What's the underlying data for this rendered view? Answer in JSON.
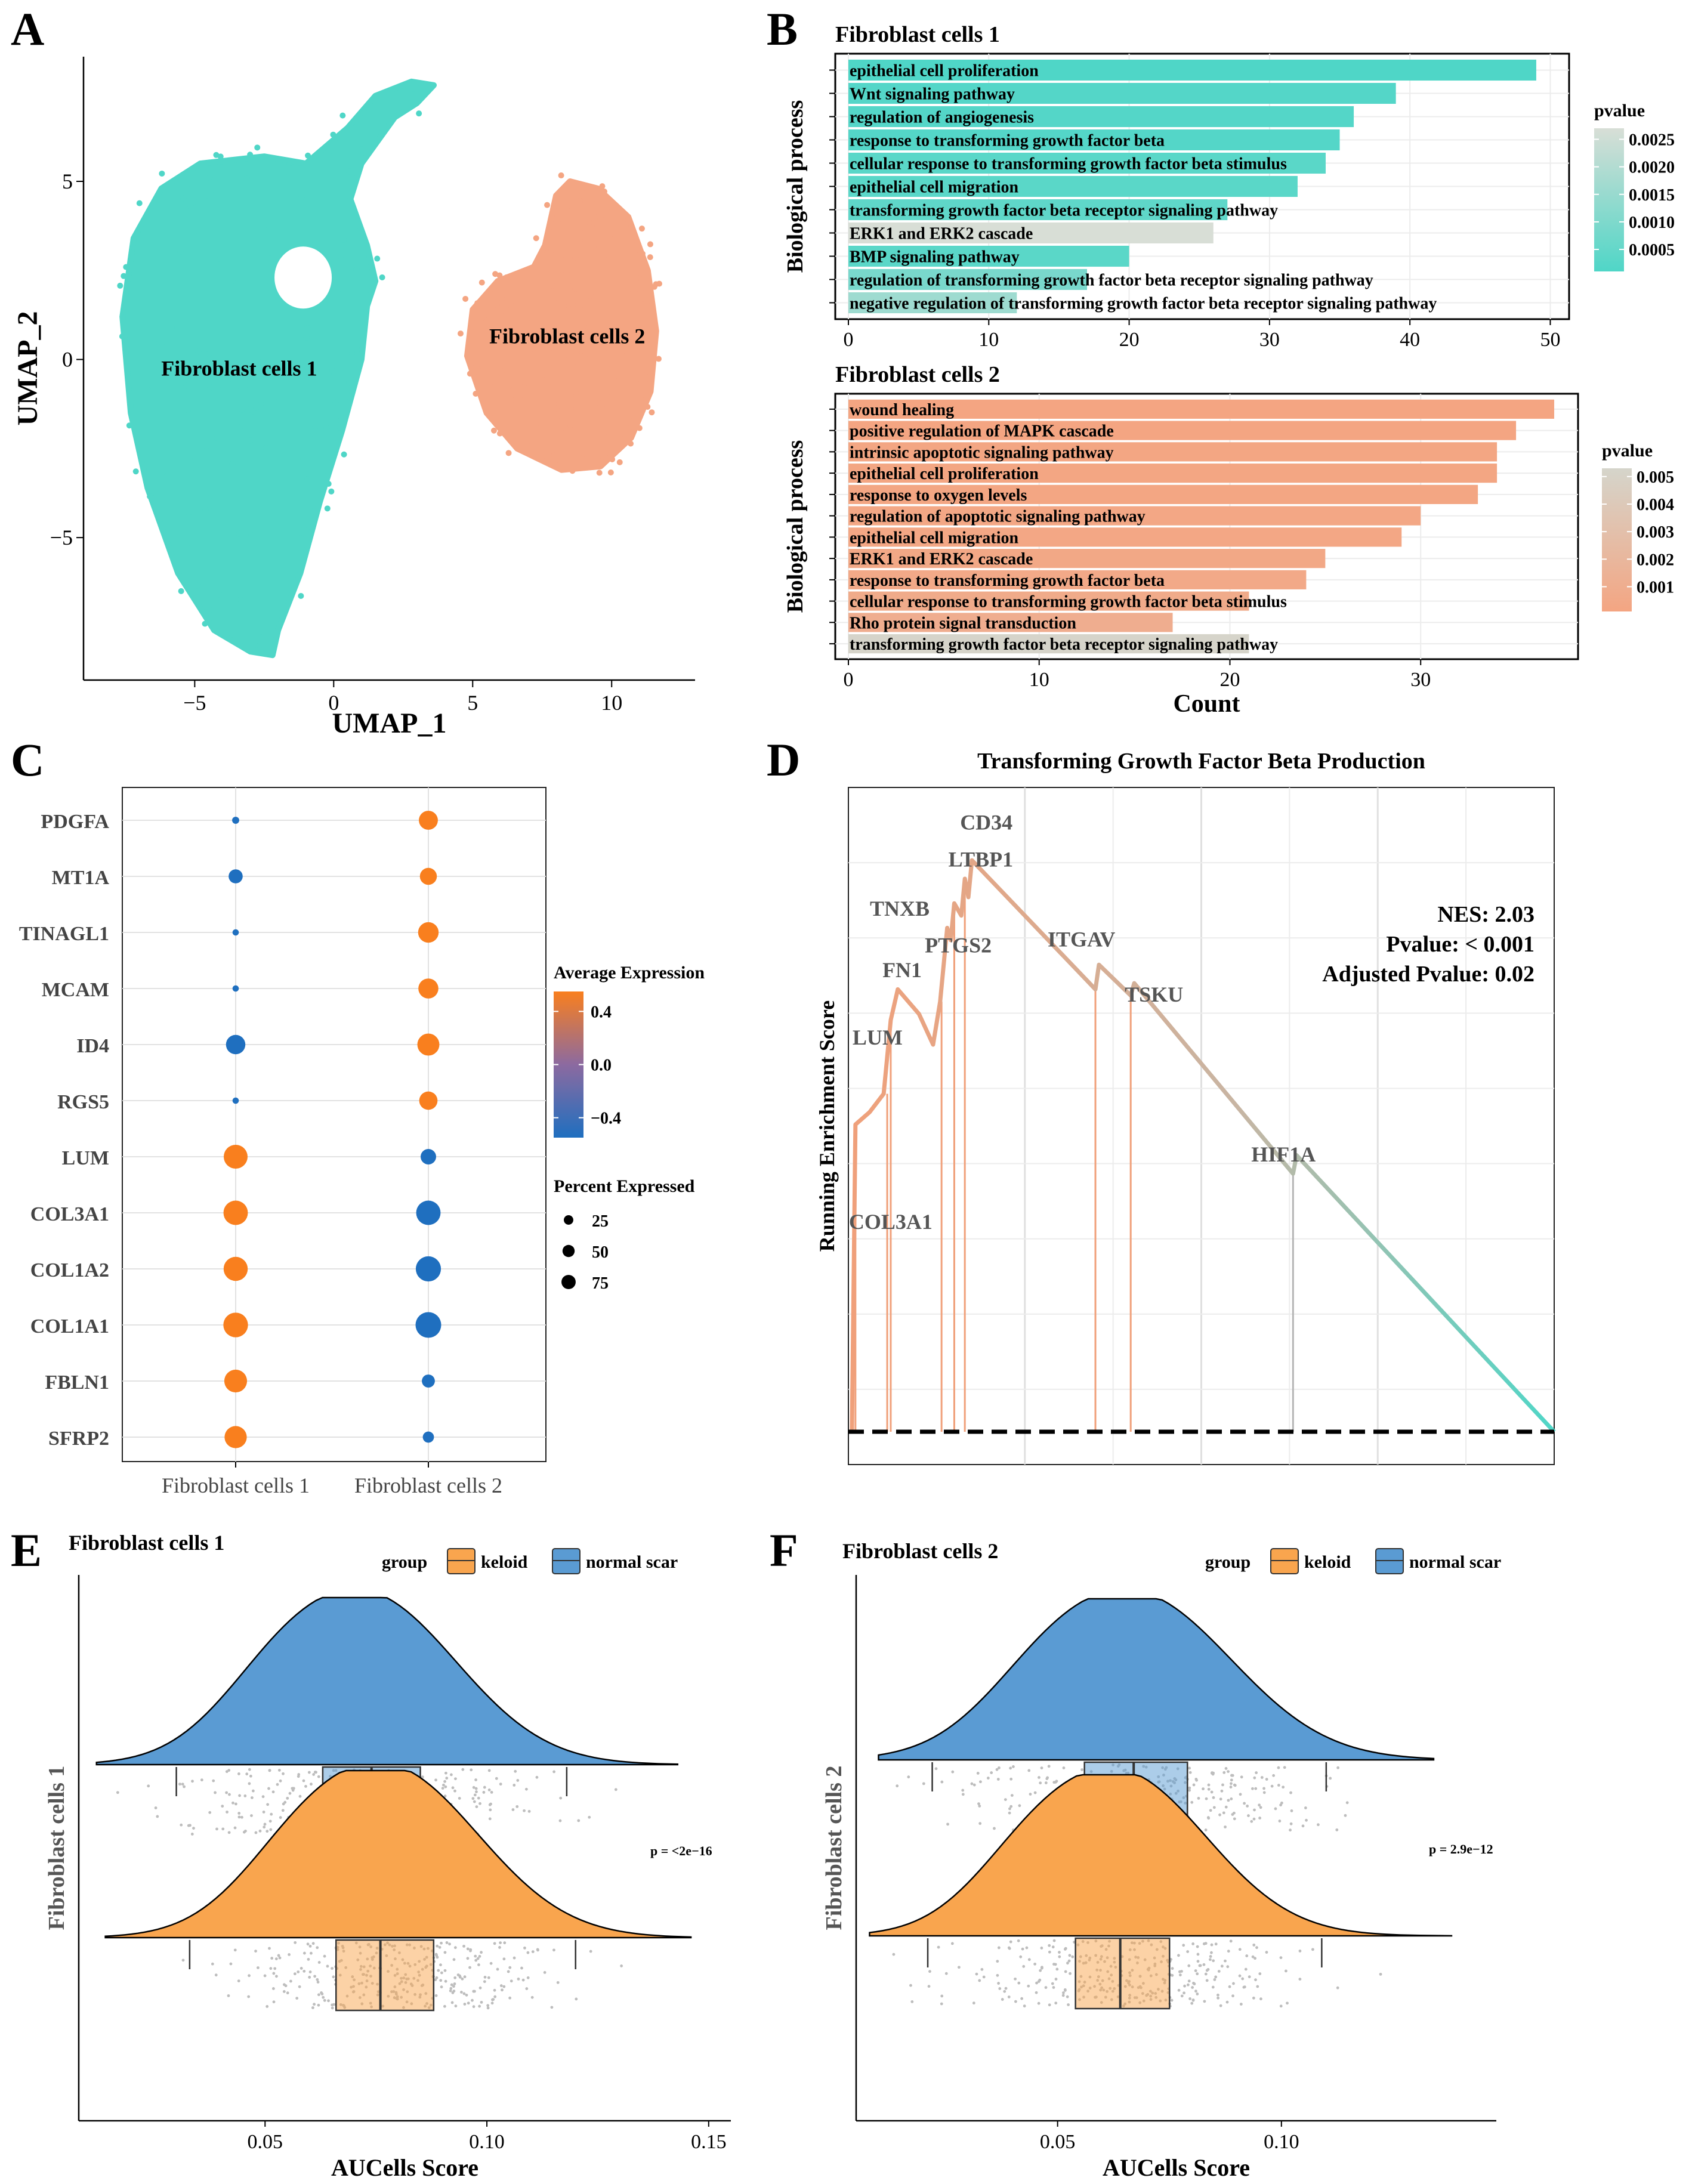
{
  "panels": {
    "A": "A",
    "B": "B",
    "C": "C",
    "D": "D",
    "E": "E",
    "F": "F"
  },
  "colors": {
    "teal": "#4fd6c7",
    "salmon": "#f4a582",
    "dark_orange": "#f97f1e",
    "expr_blue": "#1f6fbf",
    "keloid": "#f9a54e",
    "normal_scar": "#5a9bd3",
    "pv1_low": "#d8ded6",
    "pv2_low": "#d5d5cb",
    "jitter": "#bdbdbd"
  },
  "chart_data": [
    {
      "panel": "A",
      "type": "scatter",
      "xlabel": "UMAP_1",
      "ylabel": "UMAP_2",
      "xlim": [
        -9,
        13
      ],
      "ylim": [
        -9,
        8.5
      ],
      "xticks": [
        "−5",
        "0",
        "5",
        "10"
      ],
      "xtick_values": [
        -5,
        0,
        5,
        10
      ],
      "yticks": [
        "5",
        "0",
        "−5"
      ],
      "ytick_values": [
        5,
        0,
        -5
      ],
      "clusters": [
        {
          "name": "Fibroblast cells 1",
          "label_pos": [
            -3.4,
            -0.45
          ],
          "color": "teal",
          "approx_outline": [
            [
              -6.2,
              4.8
            ],
            [
              -4.8,
              5.5
            ],
            [
              -2.5,
              5.7
            ],
            [
              -1,
              5.5
            ],
            [
              0.5,
              6.5
            ],
            [
              1.5,
              7.4
            ],
            [
              2.8,
              7.8
            ],
            [
              3.6,
              7.7
            ],
            [
              3,
              7.2
            ],
            [
              2.2,
              6.8
            ],
            [
              1,
              5.5
            ],
            [
              0.6,
              4.5
            ],
            [
              1.2,
              3.2
            ],
            [
              1.5,
              2.2
            ],
            [
              1.2,
              1.5
            ],
            [
              1.0,
              0
            ],
            [
              0.3,
              -2
            ],
            [
              -0.5,
              -4
            ],
            [
              -1.2,
              -6
            ],
            [
              -2,
              -7.6
            ],
            [
              -2.2,
              -8.3
            ],
            [
              -3,
              -8.2
            ],
            [
              -4.3,
              -7.6
            ],
            [
              -5.6,
              -6
            ],
            [
              -6.7,
              -3.6
            ],
            [
              -7.3,
              -1.5
            ],
            [
              -7.6,
              1.2
            ],
            [
              -7.2,
              3.4
            ]
          ]
        },
        {
          "name": "Fibroblast cells 2",
          "label_pos": [
            8.4,
            0.45
          ],
          "color": "salmon",
          "approx_outline": [
            [
              5.9,
              2.2
            ],
            [
              7.2,
              2.6
            ],
            [
              7.6,
              3.2
            ],
            [
              8,
              4.6
            ],
            [
              8.5,
              5.0
            ],
            [
              9.5,
              4.8
            ],
            [
              10.6,
              4.0
            ],
            [
              11.3,
              2.5
            ],
            [
              11.6,
              0.8
            ],
            [
              11.4,
              -0.9
            ],
            [
              10.7,
              -2.2
            ],
            [
              9.6,
              -3.0
            ],
            [
              8.2,
              -3.1
            ],
            [
              6.6,
              -2.5
            ],
            [
              5.5,
              -1.5
            ],
            [
              4.8,
              0.1
            ],
            [
              5.0,
              1.4
            ]
          ]
        }
      ]
    },
    {
      "panel": "B1",
      "type": "bar",
      "title": "Fibroblast cells 1",
      "ylabel": "Biological process",
      "xlim": [
        0,
        51
      ],
      "xticks": [
        0,
        10,
        20,
        30,
        40,
        50
      ],
      "legend_title": "pvalue",
      "legend_ticks": [
        "0.0025",
        "0.0020",
        "0.0015",
        "0.0010",
        "0.0005"
      ],
      "legend_tick_values": [
        0.0025,
        0.002,
        0.0015,
        0.001,
        0.0005
      ],
      "legend_range": [
        0.0001,
        0.0027
      ],
      "categories": [
        "epithelial cell proliferation",
        "Wnt signaling pathway",
        "regulation of angiogenesis",
        "response to transforming growth factor beta",
        "cellular response to transforming growth factor beta stimulus",
        "epithelial cell migration",
        "transforming growth factor beta receptor signaling pathway",
        "ERK1 and ERK2 cascade",
        "BMP signaling pathway",
        "regulation of transforming growth factor beta receptor signaling pathway",
        "negative regulation of transforming growth factor beta receptor signaling pathway"
      ],
      "values": [
        49,
        39,
        36,
        35,
        34,
        32,
        27,
        26,
        20,
        17,
        12
      ],
      "pvalues": [
        0.0001,
        0.0002,
        0.0002,
        0.0002,
        0.0003,
        0.0003,
        0.0004,
        0.0027,
        0.0003,
        0.0009,
        0.0016
      ]
    },
    {
      "panel": "B2",
      "type": "bar",
      "title": "Fibroblast cells 2",
      "ylabel": "Biological process",
      "xlabel": "Count",
      "xlim": [
        0,
        38
      ],
      "xticks": [
        0,
        10,
        20,
        30
      ],
      "legend_title": "pvalue",
      "legend_ticks": [
        "0.005",
        "0.004",
        "0.003",
        "0.002",
        "0.001"
      ],
      "legend_tick_values": [
        0.005,
        0.004,
        0.003,
        0.002,
        0.001
      ],
      "legend_range": [
        0.0001,
        0.0053
      ],
      "categories": [
        "wound healing",
        "positive regulation of MAPK cascade",
        "intrinsic apoptotic signaling pathway",
        "epithelial cell proliferation",
        "response to oxygen levels",
        "regulation of apoptotic signaling pathway",
        "epithelial cell migration",
        "ERK1 and ERK2 cascade",
        "response to transforming growth factor beta",
        "cellular response to transforming growth factor beta stimulus",
        "Rho protein signal transduction",
        "transforming growth factor beta receptor signaling pathway"
      ],
      "values": [
        37,
        35,
        34,
        34,
        33,
        30,
        29,
        25,
        24,
        21,
        17,
        21
      ],
      "pvalues": [
        0.0001,
        0.0001,
        0.0002,
        0.0002,
        0.0002,
        0.0003,
        0.0003,
        0.0004,
        0.0005,
        0.0007,
        0.001,
        0.0052
      ]
    },
    {
      "panel": "C",
      "type": "scatter",
      "genes": [
        "PDGFA",
        "MT1A",
        "TINAGL1",
        "MCAM",
        "ID4",
        "RGS5",
        "LUM",
        "COL3A1",
        "COL1A2",
        "COL1A1",
        "FBLN1",
        "SFRP2"
      ],
      "groups": [
        "Fibroblast cells 1",
        "Fibroblast cells 2"
      ],
      "avg_expr": [
        [
          -0.55,
          0.55
        ],
        [
          -0.55,
          0.55
        ],
        [
          -0.55,
          0.55
        ],
        [
          -0.55,
          0.55
        ],
        [
          -0.55,
          0.55
        ],
        [
          -0.55,
          0.55
        ],
        [
          0.55,
          -0.55
        ],
        [
          0.55,
          -0.55
        ],
        [
          0.55,
          -0.55
        ],
        [
          0.55,
          -0.55
        ],
        [
          0.55,
          -0.55
        ],
        [
          0.55,
          -0.55
        ]
      ],
      "pct_expr": [
        [
          3,
          46
        ],
        [
          22,
          35
        ],
        [
          2,
          55
        ],
        [
          2,
          52
        ],
        [
          48,
          65
        ],
        [
          2,
          42
        ],
        [
          78,
          28
        ],
        [
          82,
          82
        ],
        [
          80,
          88
        ],
        [
          84,
          92
        ],
        [
          70,
          18
        ],
        [
          66,
          12
        ]
      ],
      "legend_expr_title": "Average Expression",
      "legend_expr_ticks": [
        "0.4",
        "0.0",
        "−0.4"
      ],
      "legend_expr_tick_values": [
        0.4,
        0.0,
        -0.4
      ],
      "legend_pct_title": "Percent Expressed",
      "legend_pct_ticks": [
        "25",
        "50",
        "75"
      ],
      "legend_pct_tick_values": [
        25,
        50,
        75
      ]
    },
    {
      "panel": "D",
      "type": "line",
      "title": "Transforming Growth Factor Beta Production",
      "ylabel": "Running Enrichment Score",
      "points": [
        [
          0,
          0
        ],
        [
          0.5,
          0
        ],
        [
          1,
          0.5
        ],
        [
          3,
          0.52
        ],
        [
          5,
          0.55
        ],
        [
          6,
          0.67
        ],
        [
          7,
          0.72
        ],
        [
          10,
          0.68
        ],
        [
          12,
          0.63
        ],
        [
          13,
          0.7
        ],
        [
          14,
          0.82
        ],
        [
          14.5,
          0.8
        ],
        [
          15,
          0.86
        ],
        [
          16,
          0.84
        ],
        [
          16.5,
          0.9
        ],
        [
          17,
          0.87
        ],
        [
          17.5,
          0.93
        ],
        [
          35,
          0.72
        ],
        [
          35.5,
          0.76
        ],
        [
          40,
          0.71
        ],
        [
          40.5,
          0.73
        ],
        [
          63,
          0.42
        ],
        [
          63.5,
          0.45
        ],
        [
          100,
          0
        ]
      ],
      "gene_hits": [
        {
          "gene": "COL3A1",
          "x": 0.5,
          "label_y": 0.33
        },
        {
          "gene": "LUM",
          "x": 1,
          "label_y": 0.63
        },
        {
          "gene": "FN1",
          "x": 5.5,
          "label_y": 0.74
        },
        {
          "gene": "TNXB",
          "x": 6,
          "label_y": 0.84
        },
        {
          "gene": "PTGS2",
          "x": 13.2,
          "label_y": 0.78
        },
        {
          "gene": "LTBP1",
          "x": 15,
          "label_y": 0.92
        },
        {
          "gene": "CD34",
          "x": 16.5,
          "label_y": 0.98
        },
        {
          "gene": "ITGAV",
          "x": 35,
          "label_y": 0.79
        },
        {
          "gene": "TSKU",
          "x": 40,
          "label_y": 0.7
        },
        {
          "gene": "HIF1A",
          "x": 63,
          "label_y": 0.44
        }
      ],
      "annotations": [
        "NES: 2.03",
        "Pvalue: < 0.001",
        "Adjusted Pvalue: 0.02"
      ]
    },
    {
      "panel": "E",
      "type": "area",
      "title": "Fibroblast cells 1",
      "ylabel": "Fibroblast cells 1",
      "xlabel": "AUCells Score",
      "xlim": [
        0.008,
        0.155
      ],
      "xticks": [
        "0.05",
        "0.10",
        "0.15"
      ],
      "xtick_values": [
        0.05,
        0.1,
        0.15
      ],
      "legend_title": "group",
      "legend_items": [
        "keloid",
        "normal scar"
      ],
      "p_label": "p = <2e−16",
      "series": [
        {
          "name": "normal scar",
          "color": "normal_scar",
          "range": [
            0.012,
            0.143
          ],
          "q1": 0.063,
          "median": 0.074,
          "q3": 0.085,
          "whisker_low": 0.03,
          "whisker_high": 0.118,
          "peak": 0.073
        },
        {
          "name": "keloid",
          "color": "keloid",
          "range": [
            0.014,
            0.146
          ],
          "q1": 0.066,
          "median": 0.076,
          "q3": 0.088,
          "whisker_low": 0.033,
          "whisker_high": 0.12,
          "peak": 0.078
        }
      ]
    },
    {
      "panel": "F",
      "type": "area",
      "title": "Fibroblast cells 2",
      "ylabel": "Fibroblast cells 2",
      "xlabel": "AUCells Score",
      "xlim": [
        0.005,
        0.148
      ],
      "xticks": [
        "0.05",
        "0.10"
      ],
      "xtick_values": [
        0.05,
        0.1
      ],
      "legend_title": "group",
      "legend_items": [
        "keloid",
        "normal scar"
      ],
      "p_label": "p = 2.9e−12",
      "series": [
        {
          "name": "normal scar",
          "color": "normal_scar",
          "range": [
            0.01,
            0.134
          ],
          "q1": 0.056,
          "median": 0.067,
          "q3": 0.079,
          "whisker_low": 0.022,
          "whisker_high": 0.11,
          "peak": 0.068
        },
        {
          "name": "keloid",
          "color": "keloid",
          "range": [
            0.008,
            0.138
          ],
          "q1": 0.054,
          "median": 0.064,
          "q3": 0.075,
          "whisker_low": 0.021,
          "whisker_high": 0.109,
          "peak": 0.064
        }
      ]
    }
  ]
}
